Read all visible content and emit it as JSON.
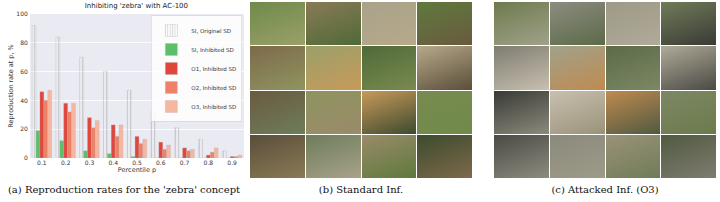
{
  "chart_data": {
    "type": "bar",
    "title": "Inhibiting 'zebra' with AC-100",
    "x_label": "Percentile p",
    "y_label": "Reproduction rate at p, %",
    "categories": [
      "0.1",
      "0.2",
      "0.3",
      "0.4",
      "0.5",
      "0.6",
      "0.7",
      "0.8",
      "0.9"
    ],
    "series": [
      {
        "name": "SI, Original SD",
        "color": "#e4e4e4",
        "marker": "hatch",
        "values": [
          92,
          84,
          70,
          60,
          47,
          33,
          21,
          13,
          5
        ]
      },
      {
        "name": "SI, Inhibited SD",
        "color": "#5cbf6a",
        "values": [
          19,
          12,
          5,
          3,
          1,
          0,
          0,
          0,
          0
        ]
      },
      {
        "name": "O1, Inhibited SD",
        "color": "#e0463c",
        "values": [
          46,
          38,
          28,
          23,
          15,
          11,
          7,
          2,
          1
        ]
      },
      {
        "name": "O2, Inhibited SD",
        "color": "#ef8068",
        "values": [
          40,
          32,
          21,
          15,
          10,
          6,
          5,
          4,
          1
        ]
      },
      {
        "name": "O3, Inhibited SD",
        "color": "#f6b6a0",
        "values": [
          47,
          38,
          26,
          23,
          13,
          9,
          6,
          7,
          2
        ]
      }
    ],
    "ylim": [
      0,
      100
    ],
    "yticks": [
      0,
      20,
      40,
      60,
      80,
      100
    ],
    "grid": true,
    "legend": "upper right"
  },
  "captions": [
    "(a) Reproduction rates for the 'zebra' concept",
    "(b) Standard Inf.",
    "(c) Attacked Inf. (O3)"
  ]
}
